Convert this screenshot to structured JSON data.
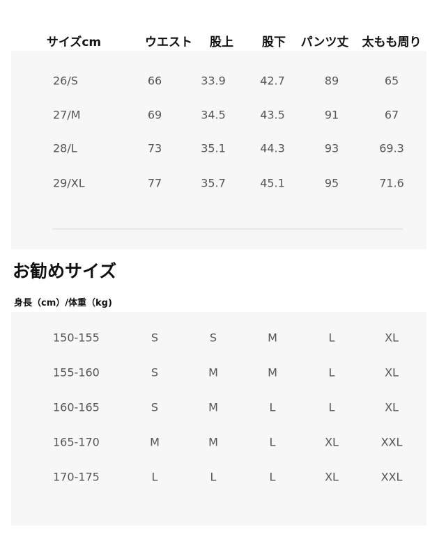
{
  "size_table": {
    "headers": [
      "サイズcm",
      "ウエスト",
      "股上",
      "股下",
      "パンツ丈",
      "太もも周り"
    ],
    "rows": [
      [
        "26/S",
        "66",
        "33.9",
        "42.7",
        "89",
        "65"
      ],
      [
        "27/M",
        "69",
        "34.5",
        "43.5",
        "91",
        "67"
      ],
      [
        "28/L",
        "73",
        "35.1",
        "44.3",
        "93",
        "69.3"
      ],
      [
        "29/XL",
        "77",
        "35.7",
        "45.1",
        "95",
        "71.6"
      ]
    ]
  },
  "recommend": {
    "title": "お勧めサイズ",
    "subtitle": "身長（cm）/体重（kg)",
    "rows": [
      [
        "150-155",
        "S",
        "S",
        "M",
        "L",
        "XL"
      ],
      [
        "155-160",
        "S",
        "M",
        "M",
        "L",
        "XL"
      ],
      [
        "160-165",
        "S",
        "M",
        "L",
        "L",
        "XL"
      ],
      [
        "165-170",
        "M",
        "M",
        "L",
        "XL",
        "XXL"
      ],
      [
        "170-175",
        "L",
        "L",
        "L",
        "XL",
        "XXL"
      ]
    ]
  }
}
